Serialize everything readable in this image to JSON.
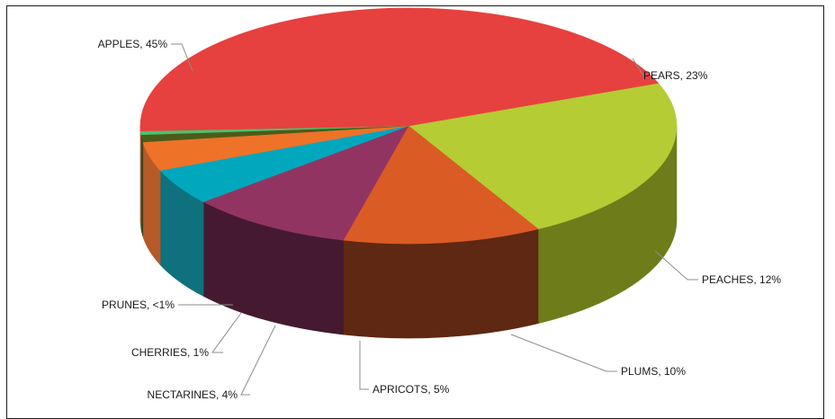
{
  "chart_data": {
    "type": "pie",
    "style": "3d",
    "title": "",
    "slices": [
      {
        "label": "PEARS",
        "percent_label": "23%",
        "value": 23,
        "color": "#B5CC34",
        "side_color": "#6E7D1A"
      },
      {
        "label": "PEACHES",
        "percent_label": "12%",
        "value": 12,
        "color": "#DB5B25",
        "side_color": "#5E2812"
      },
      {
        "label": "PLUMS",
        "percent_label": "10%",
        "value": 10,
        "color": "#923462",
        "side_color": "#451A30"
      },
      {
        "label": "APRICOTS",
        "percent_label": "5%",
        "value": 5,
        "color": "#00A7BD",
        "side_color": "#0E717D"
      },
      {
        "label": "NECTARINES",
        "percent_label": "4%",
        "value": 4,
        "color": "#EE7228",
        "side_color": "#B55A28"
      },
      {
        "label": "CHERRIES",
        "percent_label": "1%",
        "value": 1,
        "color": "#4C5B1A",
        "side_color": "#3A4414"
      },
      {
        "label": "PRUNES",
        "percent_label": "<1%",
        "value": 0.5,
        "color": "#4DC26B",
        "side_color": "#35904E"
      },
      {
        "label": "APPLES",
        "percent_label": "45%",
        "value": 45,
        "color": "#E6413E",
        "side_color": "#C33A36"
      }
    ]
  }
}
